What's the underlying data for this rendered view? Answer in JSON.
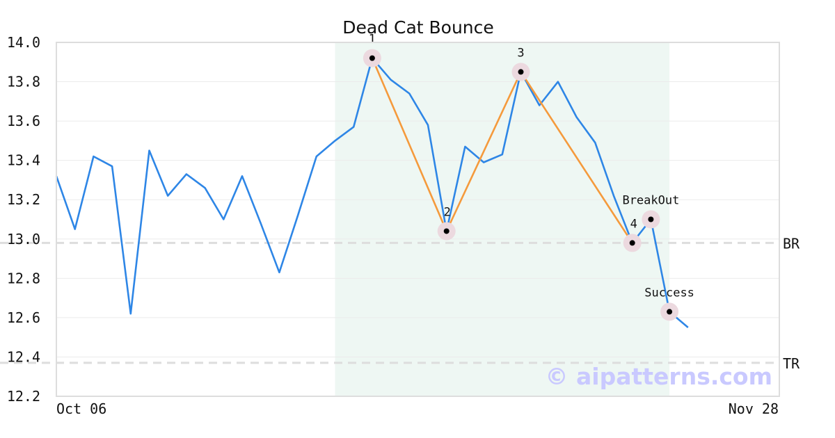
{
  "chart_data": {
    "type": "line",
    "title": "Dead Cat Bounce",
    "ylim": [
      12.2,
      14.0
    ],
    "yticks": [
      "14.0",
      "13.8",
      "13.6",
      "13.4",
      "13.2",
      "13.0",
      "12.8",
      "12.6",
      "12.4",
      "12.2"
    ],
    "x_tick_labels": [
      "Oct 06",
      "Nov 28"
    ],
    "grid": true,
    "watermark": "© aipatterns.com",
    "colors": {
      "price": "#2e86e6",
      "pattern": "#f59a3c",
      "highlight": "#eef7f3",
      "reference": "#dddddd",
      "marker_halo": "#ecd9df",
      "marker": "#000000",
      "grid": "#ebebeb",
      "frame": "#dddddd"
    },
    "series": [
      {
        "values": [
          13.32,
          13.05,
          13.42,
          13.37,
          12.62,
          13.45,
          13.22,
          13.33,
          13.26,
          13.1,
          13.32,
          13.08,
          12.83,
          13.12,
          13.42,
          13.5,
          13.57,
          13.92,
          13.81,
          13.74,
          13.58,
          13.04,
          13.47,
          13.39,
          13.43,
          13.85,
          13.68,
          13.8,
          13.62,
          13.49,
          13.22,
          12.98,
          13.1,
          12.63,
          12.55
        ]
      }
    ],
    "pattern_line": [
      {
        "index": 17,
        "y": 13.92
      },
      {
        "index": 21,
        "y": 13.04
      },
      {
        "index": 25,
        "y": 13.85
      },
      {
        "index": 31,
        "y": 12.98
      }
    ],
    "highlight_range": [
      15,
      33
    ],
    "reference_lines": [
      {
        "label": "BR",
        "y": 12.98
      },
      {
        "label": "TR",
        "y": 12.37
      }
    ],
    "markers": [
      {
        "label": "1",
        "index": 17,
        "y": 13.92
      },
      {
        "label": "2",
        "index": 21,
        "y": 13.04
      },
      {
        "label": "3",
        "index": 25,
        "y": 13.85
      },
      {
        "label": "4",
        "index": 31,
        "y": 12.98
      },
      {
        "label": "BreakOut",
        "index": 32,
        "y": 13.1
      },
      {
        "label": "Success",
        "index": 33,
        "y": 12.63
      }
    ]
  }
}
